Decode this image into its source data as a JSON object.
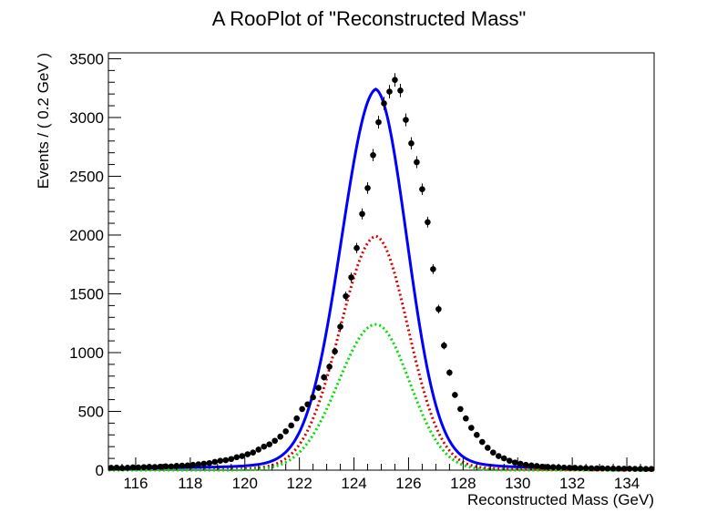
{
  "chart_data": {
    "type": "line",
    "title": "A RooPlot of \"Reconstructed Mass\"",
    "xlabel": "Reconstructed Mass (GeV)",
    "ylabel": "Events / ( 0.2 GeV )",
    "xlim": [
      115,
      135
    ],
    "ylim": [
      0,
      3550
    ],
    "x_ticks": [
      116,
      118,
      120,
      122,
      124,
      126,
      128,
      130,
      132,
      134
    ],
    "x_tick_labels": [
      "116",
      "118",
      "120",
      "122",
      "124",
      "126",
      "128",
      "130",
      "132",
      "134"
    ],
    "y_ticks": [
      0,
      500,
      1000,
      1500,
      2000,
      2500,
      3000,
      3500
    ],
    "y_tick_labels": [
      "0",
      "500",
      "1000",
      "1500",
      "2000",
      "2500",
      "3000",
      "3500"
    ],
    "grid": false,
    "colors": {
      "data": "#000000",
      "total": "#0000ff",
      "component_red": "#dd0000",
      "component_green": "#00dd00"
    },
    "data_points": {
      "x": [
        115.1,
        115.3,
        115.5,
        115.7,
        115.9,
        116.1,
        116.3,
        116.5,
        116.7,
        116.9,
        117.1,
        117.3,
        117.5,
        117.7,
        117.9,
        118.1,
        118.3,
        118.5,
        118.7,
        118.9,
        119.1,
        119.3,
        119.5,
        119.7,
        119.9,
        120.1,
        120.3,
        120.5,
        120.7,
        120.9,
        121.1,
        121.3,
        121.5,
        121.7,
        121.9,
        122.1,
        122.3,
        122.5,
        122.7,
        122.9,
        123.1,
        123.3,
        123.5,
        123.7,
        123.9,
        124.1,
        124.3,
        124.5,
        124.7,
        124.9,
        125.1,
        125.3,
        125.5,
        125.7,
        125.9,
        126.1,
        126.3,
        126.5,
        126.7,
        126.9,
        127.1,
        127.3,
        127.5,
        127.7,
        127.9,
        128.1,
        128.3,
        128.5,
        128.7,
        128.9,
        129.1,
        129.3,
        129.5,
        129.7,
        129.9,
        130.1,
        130.3,
        130.5,
        130.7,
        130.9,
        131.1,
        131.3,
        131.5,
        131.7,
        131.9,
        132.1,
        132.3,
        132.5,
        132.7,
        132.9,
        133.1,
        133.3,
        133.5,
        133.7,
        133.9,
        134.1,
        134.3,
        134.5,
        134.7,
        134.9
      ],
      "y": [
        20,
        22,
        18,
        21,
        24,
        23,
        26,
        28,
        27,
        30,
        33,
        32,
        36,
        38,
        40,
        45,
        50,
        55,
        60,
        70,
        80,
        85,
        95,
        110,
        120,
        135,
        150,
        175,
        200,
        220,
        250,
        285,
        330,
        380,
        440,
        520,
        560,
        620,
        700,
        790,
        880,
        1010,
        1220,
        1480,
        1640,
        1890,
        2180,
        2400,
        2680,
        2960,
        3120,
        3220,
        3320,
        3230,
        2980,
        2780,
        2620,
        2390,
        2110,
        1710,
        1370,
        1060,
        830,
        640,
        520,
        440,
        360,
        300,
        240,
        190,
        150,
        120,
        100,
        80,
        65,
        55,
        45,
        40,
        35,
        30,
        28,
        26,
        24,
        22,
        20,
        20,
        18,
        17,
        16,
        15,
        15,
        14,
        13,
        13,
        12,
        12,
        11,
        11,
        10,
        10
      ]
    },
    "series": [
      {
        "values_type": "solid",
        "color": "total",
        "peak": 3230,
        "mean": 124.8,
        "sigma": 1.2,
        "tail": 0.8
      },
      {
        "values_type": "dotted",
        "color": "component_red",
        "peak": 1990,
        "mean": 124.8,
        "sigma": 1.25,
        "tail": 0.5
      },
      {
        "values_type": "dotted",
        "color": "component_green",
        "peak": 1240,
        "mean": 124.8,
        "sigma": 1.3,
        "tail": 0.0
      }
    ]
  }
}
